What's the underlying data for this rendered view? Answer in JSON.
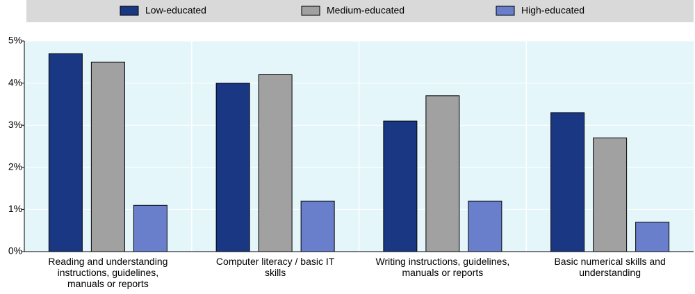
{
  "chart_data": {
    "type": "bar",
    "categories": [
      "Reading and understanding instructions, guidelines, manuals or reports",
      "Computer literacy / basic IT skills",
      "Writing instructions, guidelines, manuals or reports",
      "Basic numerical skills and understanding"
    ],
    "series": [
      {
        "name": "Low-educated",
        "color": "#1a3784",
        "values": [
          4.7,
          4.0,
          3.1,
          3.3
        ]
      },
      {
        "name": "Medium-educated",
        "color": "#a1a1a1",
        "values": [
          4.5,
          4.2,
          3.7,
          2.7
        ]
      },
      {
        "name": "High-educated",
        "color": "#6a7fcb",
        "values": [
          1.1,
          1.2,
          1.2,
          0.7
        ]
      }
    ],
    "ylim": [
      0,
      5
    ],
    "yticks": [
      {
        "value": 0,
        "label": "0%"
      },
      {
        "value": 1,
        "label": "1%"
      },
      {
        "value": 2,
        "label": "2%"
      },
      {
        "value": 3,
        "label": "3%"
      },
      {
        "value": 4,
        "label": "4%"
      },
      {
        "value": 5,
        "label": "5%"
      }
    ],
    "grid": true,
    "legend": "top"
  }
}
